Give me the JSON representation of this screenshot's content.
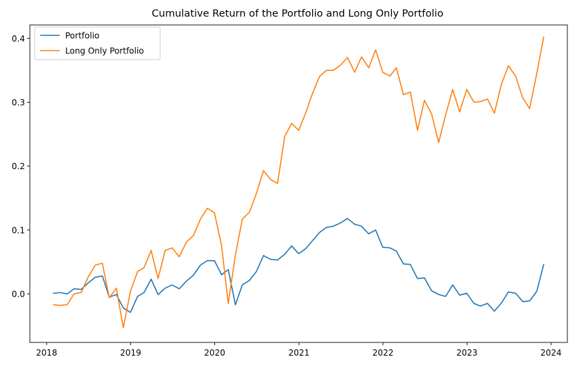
{
  "colors": {
    "portfolio": "#1f77b4",
    "long_only": "#ff7f0e",
    "axes": "#000000",
    "legend_border": "#cccccc"
  },
  "chart_data": {
    "type": "line",
    "title": "Cumulative Return of the Portfolio and Long Only Portfolio",
    "xlabel": "",
    "ylabel": "",
    "x_ticks": [
      "2018",
      "2019",
      "2020",
      "2021",
      "2022",
      "2023",
      "2024"
    ],
    "y_ticks": [
      "0.0",
      "0.1",
      "0.2",
      "0.3",
      "0.4"
    ],
    "xlim": [
      "2017-10-20",
      "2024-03-12"
    ],
    "ylim": [
      -0.076,
      0.421
    ],
    "grid": false,
    "legend_position": "top-left",
    "x": [
      "2018-01-31",
      "2018-02-28",
      "2018-03-31",
      "2018-04-30",
      "2018-05-31",
      "2018-06-30",
      "2018-07-31",
      "2018-08-31",
      "2018-09-30",
      "2018-10-31",
      "2018-11-30",
      "2018-12-31",
      "2019-01-31",
      "2019-02-28",
      "2019-03-31",
      "2019-04-30",
      "2019-05-31",
      "2019-06-30",
      "2019-07-31",
      "2019-08-31",
      "2019-09-30",
      "2019-10-31",
      "2019-11-30",
      "2019-12-31",
      "2020-01-31",
      "2020-02-29",
      "2020-03-31",
      "2020-04-30",
      "2020-05-31",
      "2020-06-30",
      "2020-07-31",
      "2020-08-31",
      "2020-09-30",
      "2020-10-31",
      "2020-11-30",
      "2020-12-31",
      "2021-01-31",
      "2021-02-28",
      "2021-03-31",
      "2021-04-30",
      "2021-05-31",
      "2021-06-30",
      "2021-07-31",
      "2021-08-31",
      "2021-09-30",
      "2021-10-31",
      "2021-11-30",
      "2021-12-31",
      "2022-01-31",
      "2022-02-28",
      "2022-03-31",
      "2022-04-30",
      "2022-05-31",
      "2022-06-30",
      "2022-07-31",
      "2022-08-31",
      "2022-09-30",
      "2022-10-31",
      "2022-11-30",
      "2022-12-31",
      "2023-01-31",
      "2023-02-28",
      "2023-03-31",
      "2023-04-30",
      "2023-05-31",
      "2023-06-30",
      "2023-07-31",
      "2023-08-31",
      "2023-09-30",
      "2023-10-31",
      "2023-11-30"
    ],
    "series": [
      {
        "name": "Portfolio",
        "color": "#1f77b4",
        "values": [
          0.001,
          0.002,
          0.0,
          0.008,
          0.007,
          0.017,
          0.026,
          0.028,
          -0.005,
          -0.001,
          -0.022,
          -0.029,
          -0.004,
          0.002,
          0.023,
          -0.001,
          0.009,
          0.014,
          0.008,
          0.02,
          0.029,
          0.045,
          0.052,
          0.052,
          0.03,
          0.038,
          -0.017,
          0.014,
          0.021,
          0.035,
          0.06,
          0.054,
          0.053,
          0.062,
          0.075,
          0.063,
          0.071,
          0.083,
          0.096,
          0.104,
          0.106,
          0.111,
          0.118,
          0.109,
          0.106,
          0.094,
          0.1,
          0.073,
          0.072,
          0.067,
          0.047,
          0.046,
          0.024,
          0.025,
          0.005,
          -0.001,
          -0.004,
          0.014,
          -0.002,
          0.001,
          -0.015,
          -0.019,
          -0.015,
          -0.027,
          -0.014,
          0.003,
          0.001,
          -0.012,
          -0.011,
          0.004,
          0.046
        ]
      },
      {
        "name": "Long Only Portfolio",
        "color": "#ff7f0e",
        "values": [
          -0.017,
          -0.018,
          -0.017,
          0.0,
          0.002,
          0.026,
          0.045,
          0.048,
          -0.006,
          0.009,
          -0.053,
          0.004,
          0.035,
          0.041,
          0.068,
          0.024,
          0.068,
          0.072,
          0.058,
          0.081,
          0.091,
          0.117,
          0.134,
          0.127,
          0.075,
          -0.015,
          0.061,
          0.117,
          0.128,
          0.157,
          0.193,
          0.179,
          0.173,
          0.246,
          0.267,
          0.256,
          0.284,
          0.313,
          0.34,
          0.35,
          0.35,
          0.358,
          0.37,
          0.347,
          0.371,
          0.354,
          0.382,
          0.347,
          0.341,
          0.354,
          0.312,
          0.316,
          0.256,
          0.303,
          0.282,
          0.237,
          0.28,
          0.32,
          0.285,
          0.32,
          0.3,
          0.301,
          0.305,
          0.283,
          0.329,
          0.357,
          0.341,
          0.307,
          0.29,
          0.345,
          0.402
        ]
      }
    ]
  }
}
